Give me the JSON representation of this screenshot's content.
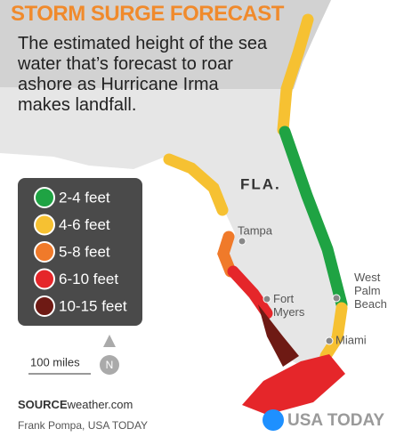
{
  "title": "STORM SURGE FORECAST",
  "subtitle_lines": [
    "The estimated height of the sea",
    "water that’s forecast to roar",
    "ashore as Hurricane Irma",
    "makes landfall."
  ],
  "state_label": "FLA.",
  "legend": [
    {
      "label": "2-4 feet",
      "color": "#1fa343"
    },
    {
      "label": "4-6 feet",
      "color": "#f6c132"
    },
    {
      "label": "5-8 feet",
      "color": "#f07a2a"
    },
    {
      "label": "6-10 feet",
      "color": "#e5262a"
    },
    {
      "label": "10-15 feet",
      "color": "#6e1a14"
    }
  ],
  "cities": [
    "Tampa",
    "Fort Myers",
    "West Palm Beach",
    "Miami"
  ],
  "scale_label": "100 miles",
  "north_label": "N",
  "source": {
    "label": "SOURCE",
    "text": "weather.com"
  },
  "credit": "Frank Pompa, USA TODAY",
  "logo": "USA TODAY"
}
